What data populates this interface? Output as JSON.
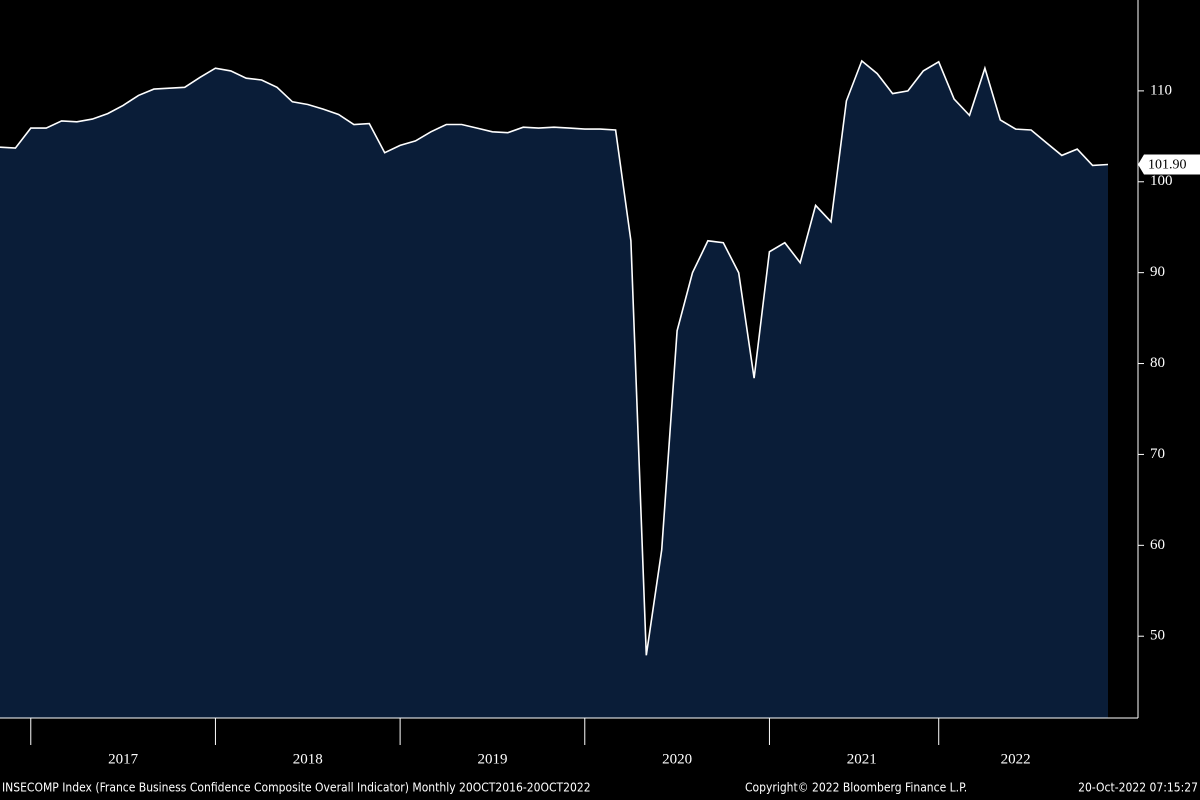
{
  "chart_data": {
    "type": "area",
    "categories": [
      null,
      null,
      null,
      null,
      null,
      null,
      null,
      null,
      "2017",
      null,
      null,
      null,
      null,
      null,
      null,
      null,
      null,
      null,
      null,
      null,
      "2018",
      null,
      null,
      null,
      null,
      null,
      null,
      null,
      null,
      null,
      null,
      null,
      "2019",
      null,
      null,
      null,
      null,
      null,
      null,
      null,
      null,
      null,
      null,
      null,
      "2020",
      null,
      null,
      null,
      null,
      null,
      null,
      null,
      null,
      null,
      null,
      null,
      "2021",
      null,
      null,
      null,
      null,
      null,
      null,
      null,
      null,
      null,
      "2022",
      null,
      null,
      null,
      null,
      null,
      null
    ],
    "series": [
      {
        "color": "#ffffff",
        "fill": "#0a1d38",
        "values": [
          103.8,
          103.7,
          105.9,
          105.9,
          106.7,
          106.6,
          106.9,
          107.5,
          108.4,
          109.5,
          110.2,
          110.3,
          110.4,
          111.5,
          112.5,
          112.2,
          111.4,
          111.2,
          110.4,
          108.8,
          108.5,
          108.0,
          107.4,
          106.3,
          106.4,
          103.2,
          104.0,
          104.5,
          105.5,
          106.3,
          106.3,
          105.9,
          105.5,
          105.4,
          106.0,
          105.9,
          106.0,
          105.9,
          105.8,
          105.8,
          105.7,
          93.5,
          47.9,
          59.5,
          83.6,
          90.0,
          93.5,
          93.3,
          90.0,
          78.4,
          92.3,
          93.3,
          91.1,
          97.4,
          95.6,
          108.9,
          113.3,
          111.9,
          109.7,
          110.0,
          112.2,
          113.2,
          109.1,
          107.3,
          112.5,
          106.8,
          105.8,
          105.7,
          104.3,
          102.9,
          103.6,
          101.8,
          101.9
        ]
      }
    ],
    "last_value_label": "101.90",
    "ylim": [
      41,
      120
    ],
    "yticks": [
      50,
      60,
      70,
      80,
      90,
      100,
      110
    ],
    "footer": {
      "description": "INSECOMP Index (France Business Confidence Composite Overall Indicator)  Monthly 20OCT2016-20OCT2022",
      "copyright": "Copyright© 2022 Bloomberg Finance L.P.",
      "timestamp": "20-Oct-2022 07:15:27"
    }
  }
}
